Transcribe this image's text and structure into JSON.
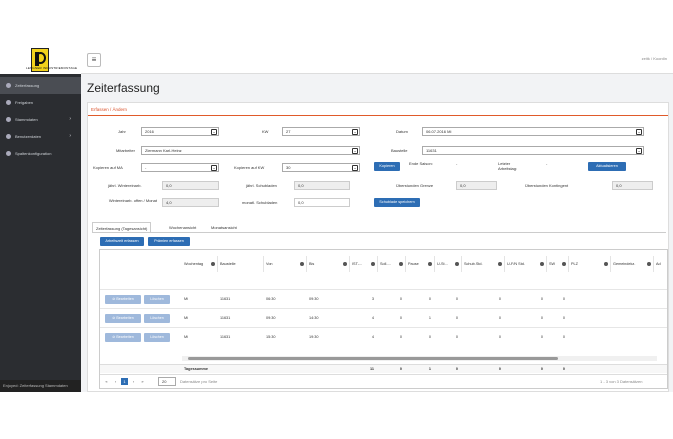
{
  "sidebar": {
    "logo_text": "LENGNER INDUSTRIEMONTAGE",
    "items": [
      {
        "label": "Zeiterfassung"
      },
      {
        "label": "Freigaben"
      },
      {
        "label": "Stammdaten"
      },
      {
        "label": "Benutzerdaten"
      },
      {
        "label": "Spaltenkonfiguration"
      }
    ],
    "bottom": "Enjoyed: Zeiterfassung Stammdaten"
  },
  "topbar": {
    "user": "zeitk / Koordin"
  },
  "page_title": "Zeiterfassung",
  "panel_title": "Erfassen / Ändern",
  "form": {
    "jahr_label": "Jahr",
    "jahr_value": "2016",
    "kw_label": "KW",
    "kw_value": "27",
    "datum_label": "Datum",
    "datum_value": "06.07.2016 Mi",
    "mitarbeiter_label": "Mitarbeiter",
    "mitarbeiter_value": "Ziermann Karl-Heinz",
    "baustelle_label": "Baustelle",
    "baustelle_value": "11631",
    "kopieren_ma_label": "Kopieren auf MA",
    "kopieren_ma_value": "-",
    "kopieren_kw_label": "Kopieren auf KW",
    "kopieren_kw_value": "30",
    "kopieren_button": "Kopieren",
    "ende_saison_label": "Ende Saison:",
    "ende_saison_value": "-",
    "letzter_label": "Letzter Arbeitstag:",
    "letzter_value": "-",
    "aktualisieren_button": "Aktualisieren",
    "winterein_label": "jährl. Wintereinarb.",
    "winterein_value": "0,0",
    "schubladen_label": "jährl. Schubladen",
    "schubladen_value": "0,0",
    "ueberstunden_grenze_label": "Überstunden Grenze",
    "ueberstunden_grenze_value": "0,0",
    "ueberstunden_kontingent_label": "Überstunden Kontingent",
    "ueberstunden_kontingent_value": "0,0",
    "winterein_offen_label": "Wintereinarb. offen / Monat",
    "winterein_offen_value": "4,0",
    "monatl_schubladen_label": "monatl. Schubladen",
    "monatl_schubladen_value": "0,0",
    "schublade_button": "Schublade speichern"
  },
  "tabs": [
    {
      "label": "Zeiterfassung (Tagesansicht)"
    },
    {
      "label": "Wochenansicht"
    },
    {
      "label": "Monatsansicht"
    }
  ],
  "grid_buttons": {
    "arbeitszeit": "Arbeitszeit erfassen",
    "praemien": "Prämien erfassen"
  },
  "columns": [
    "Wochentag",
    "Baustelle",
    "Von",
    "Bis",
    "IST-...",
    "Soll-...",
    "Pause",
    "U-St...",
    "Schub.Std.",
    "U-F/N Std.",
    "SW",
    "PLZ",
    "Gemeindekz.",
    "Ad"
  ],
  "rows": [
    {
      "tag": "Mi",
      "baustelle": "11631",
      "von": "06:30",
      "bis": "09:30",
      "ist": "3",
      "soll": "0",
      "pause": "0",
      "ust": "0",
      "schub": "0",
      "ufn": "0",
      "sw": "0"
    },
    {
      "tag": "Mi",
      "baustelle": "11631",
      "von": "09:30",
      "bis": "14:30",
      "ist": "4",
      "soll": "0",
      "pause": "1",
      "ust": "0",
      "schub": "0",
      "ufn": "0",
      "sw": "0"
    },
    {
      "tag": "Mi",
      "baustelle": "11631",
      "von": "15:30",
      "bis": "19:30",
      "ist": "4",
      "soll": "0",
      "pause": "0",
      "ust": "0",
      "schub": "0",
      "ufn": "0",
      "sw": "0"
    }
  ],
  "row_buttons": {
    "edit": "Bearbeiten",
    "delete": "Löschen"
  },
  "summary": {
    "label": "Tagessumme",
    "ist": "11",
    "soll": "0",
    "pause": "1",
    "ust": "0",
    "schub": "0",
    "ufn": "0",
    "sw": "0"
  },
  "pager": {
    "page": "1",
    "size": "20",
    "size_label": "Datensätze pro Seite",
    "info": "1 - 3 von 3 Datensätzen"
  }
}
